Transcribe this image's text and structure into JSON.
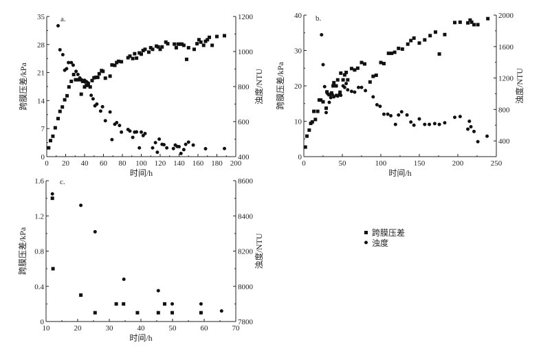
{
  "legend": {
    "square": "跨膜压差",
    "circle": "浊度"
  },
  "chart_data": [
    {
      "type": "scatter",
      "panel_label": "a.",
      "xlabel": "时间/h",
      "ylabel": "跨膜压差/kPa",
      "y2label": "浊度/NTU",
      "xlim": [
        0,
        200
      ],
      "xticks": [
        0,
        20,
        40,
        60,
        80,
        100,
        120,
        140,
        160,
        180,
        200
      ],
      "ylim": [
        0,
        35
      ],
      "yticks": [
        0,
        7,
        14,
        21,
        28,
        35
      ],
      "y2lim": [
        400,
        1200
      ],
      "y2ticks": [
        400,
        600,
        800,
        1000,
        1200
      ],
      "grid": false,
      "series": [
        {
          "name": "跨膜压差",
          "marker": "square",
          "axis": "left",
          "points": [
            [
              2,
              2.2
            ],
            [
              4,
              4
            ],
            [
              6.5,
              5.1
            ],
            [
              9,
              7.2
            ],
            [
              12,
              9.5
            ],
            [
              14,
              11.3
            ],
            [
              16.5,
              12.4
            ],
            [
              19,
              14.2
            ],
            [
              21.5,
              15.2
            ],
            [
              23.5,
              17.4
            ],
            [
              26,
              18.8
            ],
            [
              28.5,
              20.5
            ],
            [
              30.5,
              19.2
            ],
            [
              32.5,
              19.2
            ],
            [
              35,
              19.2
            ],
            [
              36.5,
              15.6
            ],
            [
              38,
              18.8
            ],
            [
              40,
              17.4
            ],
            [
              41,
              18.7
            ],
            [
              42,
              17.8
            ],
            [
              44,
              17.8
            ],
            [
              46,
              17.4
            ],
            [
              48,
              19
            ],
            [
              50,
              19.7
            ],
            [
              52,
              19.8
            ],
            [
              54,
              19.8
            ],
            [
              55.5,
              20.7
            ],
            [
              58,
              21.5
            ],
            [
              59.5,
              21.3
            ],
            [
              62,
              19.6
            ],
            [
              67,
              20.1
            ],
            [
              69,
              22.9
            ],
            [
              72,
              22.8
            ],
            [
              74,
              23.5
            ],
            [
              76,
              23.8
            ],
            [
              79,
              23.7
            ],
            [
              86,
              24.7
            ],
            [
              88,
              25.1
            ],
            [
              91,
              24.5
            ],
            [
              93,
              25.7
            ],
            [
              95,
              24.6
            ],
            [
              98,
              25.9
            ],
            [
              100,
              25.6
            ],
            [
              102,
              26.5
            ],
            [
              104,
              26.8
            ],
            [
              108,
              26.1
            ],
            [
              110,
              27.2
            ],
            [
              112,
              26.8
            ],
            [
              116,
              27.6
            ],
            [
              118,
              27.4
            ],
            [
              120,
              26.8
            ],
            [
              122,
              27.4
            ],
            [
              126,
              28.6
            ],
            [
              128,
              28.2
            ],
            [
              135,
              28.1
            ],
            [
              137,
              27.2
            ],
            [
              139,
              28.1
            ],
            [
              141,
              28.1
            ],
            [
              143,
              28.1
            ],
            [
              145,
              27.8
            ],
            [
              148,
              24.3
            ],
            [
              150,
              27.2
            ],
            [
              156,
              26.8
            ],
            [
              159,
              28.2
            ],
            [
              161,
              29.2
            ],
            [
              163,
              28.6
            ],
            [
              166,
              27.8
            ],
            [
              168,
              28.8
            ],
            [
              170,
              29.2
            ],
            [
              172,
              29.8
            ],
            [
              175,
              27.8
            ],
            [
              180,
              30
            ],
            [
              188,
              30.2
            ]
          ]
        },
        {
          "name": "浊度",
          "marker": "circle",
          "axis": "right",
          "points": [
            [
              12,
              1147
            ],
            [
              14,
              1010
            ],
            [
              17,
              982
            ],
            [
              19,
              893
            ],
            [
              21,
              902
            ],
            [
              23,
              937
            ],
            [
              26,
              937
            ],
            [
              28,
              922
            ],
            [
              31,
              887
            ],
            [
              33,
              869
            ],
            [
              35,
              849
            ],
            [
              37,
              838
            ],
            [
              40,
              836
            ],
            [
              42,
              828
            ],
            [
              44,
              820
            ],
            [
              47,
              750
            ],
            [
              49,
              730
            ],
            [
              51,
              690
            ],
            [
              53,
              700
            ],
            [
              57,
              660
            ],
            [
              59,
              685
            ],
            [
              62,
              605
            ],
            [
              67,
              655
            ],
            [
              69,
              497
            ],
            [
              72,
              585
            ],
            [
              74,
              594
            ],
            [
              77,
              578
            ],
            [
              79,
              540
            ],
            [
              86,
              555
            ],
            [
              88,
              546
            ],
            [
              91,
              510
            ],
            [
              93,
              540
            ],
            [
              95,
              541
            ],
            [
              98,
              450
            ],
            [
              100,
              540
            ],
            [
              102,
              520
            ],
            [
              104,
              532
            ],
            [
              112,
              450
            ],
            [
              115,
              480
            ],
            [
              117,
              425
            ],
            [
              119,
              500
            ],
            [
              122,
              470
            ],
            [
              124,
              468
            ],
            [
              127,
              450
            ],
            [
              134,
              446
            ],
            [
              136,
              466
            ],
            [
              138,
              458
            ],
            [
              140,
              457
            ],
            [
              142,
              418
            ],
            [
              145,
              440
            ],
            [
              147,
              470
            ],
            [
              150,
              483
            ],
            [
              155,
              466
            ],
            [
              168,
              445
            ],
            [
              188,
              446
            ]
          ]
        }
      ]
    },
    {
      "type": "scatter",
      "panel_label": "b.",
      "xlabel": "时间/h",
      "ylabel": "跨膜压差/kPa",
      "y2label": "浊度/NTU",
      "xlim": [
        0,
        250
      ],
      "xticks": [
        0,
        50,
        100,
        150,
        200,
        250
      ],
      "ylim": [
        0,
        40
      ],
      "yticks": [
        0,
        10,
        20,
        30,
        40
      ],
      "y2lim": [
        200,
        2000
      ],
      "y2ticks": [
        400,
        800,
        1200,
        1600,
        2000
      ],
      "grid": false,
      "series": [
        {
          "name": "跨膜压差",
          "marker": "square",
          "axis": "left",
          "points": [
            [
              2,
              2.7
            ],
            [
              4,
              5.8
            ],
            [
              7,
              7.5
            ],
            [
              9,
              9.4
            ],
            [
              11,
              9.8
            ],
            [
              13,
              12.8
            ],
            [
              15,
              10.5
            ],
            [
              18,
              12.8
            ],
            [
              20,
              16
            ],
            [
              22,
              16
            ],
            [
              25,
              15.5
            ],
            [
              29,
              13.7
            ],
            [
              30,
              18.3
            ],
            [
              33,
              17.5
            ],
            [
              36,
              18
            ],
            [
              38,
              20
            ],
            [
              39,
              20.9
            ],
            [
              42,
              20
            ],
            [
              44,
              21.7
            ],
            [
              47,
              18.2
            ],
            [
              48,
              23.6
            ],
            [
              51,
              21.7
            ],
            [
              53,
              23.1
            ],
            [
              55,
              23.8
            ],
            [
              57,
              21.7
            ],
            [
              62,
              24.9
            ],
            [
              66,
              24.5
            ],
            [
              70,
              25
            ],
            [
              75,
              26.6
            ],
            [
              79,
              26.2
            ],
            [
              86,
              21.1
            ],
            [
              90,
              22.7
            ],
            [
              94,
              23
            ],
            [
              100,
              26.6
            ],
            [
              104,
              26.3
            ],
            [
              110,
              29.2
            ],
            [
              114,
              29.2
            ],
            [
              118,
              29.5
            ],
            [
              123,
              30.6
            ],
            [
              128,
              30.4
            ],
            [
              135,
              31.8
            ],
            [
              139,
              32.8
            ],
            [
              143,
              33.5
            ],
            [
              150,
              32.1
            ],
            [
              157,
              33
            ],
            [
              164,
              34.2
            ],
            [
              171,
              35.2
            ],
            [
              176,
              29
            ],
            [
              183,
              34.5
            ],
            [
              196,
              37.9
            ],
            [
              203,
              38
            ],
            [
              213,
              37.8
            ],
            [
              216,
              38.6
            ],
            [
              218,
              38
            ],
            [
              221,
              37.3
            ],
            [
              226,
              37.3
            ],
            [
              239,
              39
            ]
          ]
        },
        {
          "name": "浊度",
          "marker": "circle",
          "axis": "right",
          "points": [
            [
              23,
              1750
            ],
            [
              25,
              1370
            ],
            [
              27,
              1090
            ],
            [
              29,
              760
            ],
            [
              31,
              1000
            ],
            [
              33,
              890
            ],
            [
              35,
              950
            ],
            [
              37,
              990
            ],
            [
              39,
              960
            ],
            [
              42,
              980
            ],
            [
              44,
              970
            ],
            [
              46,
              990
            ],
            [
              48,
              980
            ],
            [
              51,
              1100
            ],
            [
              53,
              1080
            ],
            [
              55,
              1130
            ],
            [
              57,
              1050
            ],
            [
              62,
              1030
            ],
            [
              66,
              1020
            ],
            [
              71,
              1080
            ],
            [
              75,
              1080
            ],
            [
              80,
              1040
            ],
            [
              90,
              960
            ],
            [
              95,
              860
            ],
            [
              99,
              840
            ],
            [
              104,
              740
            ],
            [
              109,
              740
            ],
            [
              113,
              720
            ],
            [
              119,
              610
            ],
            [
              123,
              730
            ],
            [
              127,
              770
            ],
            [
              134,
              730
            ],
            [
              139,
              640
            ],
            [
              143,
              600
            ],
            [
              150,
              680
            ],
            [
              157,
              610
            ],
            [
              163,
              610
            ],
            [
              170,
              620
            ],
            [
              176,
              610
            ],
            [
              183,
              630
            ],
            [
              196,
              700
            ],
            [
              203,
              710
            ],
            [
              213,
              550
            ],
            [
              215,
              650
            ],
            [
              217,
              580
            ],
            [
              221,
              520
            ],
            [
              226,
              390
            ],
            [
              238,
              460
            ]
          ]
        }
      ]
    },
    {
      "type": "scatter",
      "panel_label": "c.",
      "xlabel": "时间/h",
      "ylabel": "跨膜压差/kPa",
      "y2label": "浊度/NTU",
      "xlim": [
        10,
        70
      ],
      "xticks": [
        10,
        20,
        30,
        40,
        50,
        60,
        70
      ],
      "ylim": [
        0,
        1.6
      ],
      "yticks": [
        0,
        0.4,
        0.8,
        1.2,
        1.6
      ],
      "y2lim": [
        7800,
        8600
      ],
      "y2ticks": [
        7800,
        8000,
        8200,
        8400,
        8600
      ],
      "grid": false,
      "series": [
        {
          "name": "跨膜压差",
          "marker": "square",
          "axis": "left",
          "points": [
            [
              12,
              1.4
            ],
            [
              12.2,
              0.6
            ],
            [
              21,
              0.3
            ],
            [
              25.5,
              0.1
            ],
            [
              32.2,
              0.2
            ],
            [
              34.5,
              0.2
            ],
            [
              38.9,
              0.1
            ],
            [
              45.5,
              0.1
            ],
            [
              47.5,
              0.2
            ],
            [
              49.9,
              0.1
            ],
            [
              59,
              0.1
            ]
          ]
        },
        {
          "name": "浊度",
          "marker": "circle",
          "axis": "right",
          "points": [
            [
              12,
              8525
            ],
            [
              21,
              8460
            ],
            [
              25.5,
              8310
            ],
            [
              34.6,
              8040
            ],
            [
              45.5,
              7975
            ],
            [
              49.9,
              7900
            ],
            [
              59,
              7900
            ],
            [
              65.5,
              7860
            ]
          ]
        }
      ]
    }
  ]
}
